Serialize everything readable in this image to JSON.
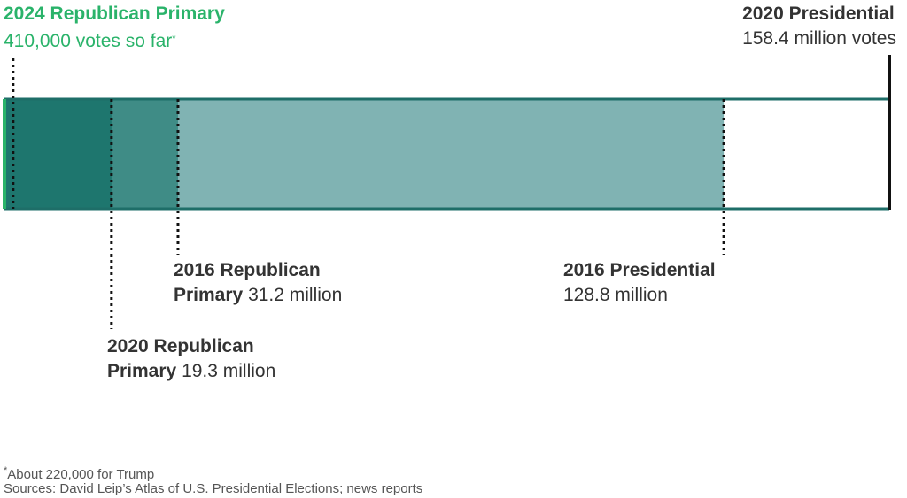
{
  "chart_data": {
    "type": "bar",
    "orientation": "horizontal-nested",
    "unit": "votes",
    "max": 158.4,
    "series": [
      {
        "title": "2020 Presidential",
        "value": 158.4,
        "value_label": "158.4 million votes",
        "color": "#ffffff"
      },
      {
        "title": "2016 Presidential",
        "value": 128.8,
        "value_label": "128.8 million",
        "color": "#80b3b3"
      },
      {
        "title_line1": "2016 Republican",
        "title_line2": "Primary",
        "value": 31.2,
        "value_label": "31.2 million",
        "color": "#3f8c86"
      },
      {
        "title_line1": "2020 Republican",
        "title_line2": "Primary",
        "value": 19.3,
        "value_label": "19.3 million",
        "color": "#1e766e"
      },
      {
        "title": "2024 Republican Primary",
        "value": 0.41,
        "value_label": "410,000 votes so far",
        "value_mark": "*",
        "color": "#2ab36a"
      }
    ]
  },
  "footnote": {
    "mark": "*",
    "text": "About 220,000 for Trump"
  },
  "sources": "Sources: David Leip’s Atlas of U.S. Presidential Elections; news reports"
}
